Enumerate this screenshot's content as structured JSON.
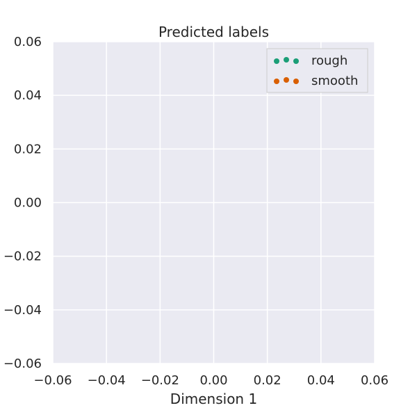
{
  "chart_data": {
    "type": "scatter",
    "title": "Predicted labels",
    "xlabel": "Dimension 1",
    "ylabel": "",
    "xlim": [
      -0.06,
      0.06
    ],
    "ylim": [
      -0.06,
      0.06
    ],
    "x_ticks": [
      -0.06,
      -0.04,
      -0.02,
      0.0,
      0.02,
      0.04,
      0.06
    ],
    "y_ticks": [
      -0.06,
      -0.04,
      -0.02,
      0.0,
      0.02,
      0.04,
      0.06
    ],
    "x_tick_labels": [
      "−0.06",
      "−0.04",
      "−0.02",
      "0.00",
      "0.02",
      "0.04",
      "0.06"
    ],
    "y_tick_labels": [
      "−0.06",
      "−0.04",
      "−0.02",
      "0.00",
      "0.02",
      "0.04",
      "0.06"
    ],
    "grid": true,
    "legend_position": "top-right",
    "series": [
      {
        "name": "rough",
        "color": "#1b9e77",
        "points": []
      },
      {
        "name": "smooth",
        "color": "#d95f02",
        "points": []
      }
    ],
    "background_color": "#eaeaf2"
  }
}
